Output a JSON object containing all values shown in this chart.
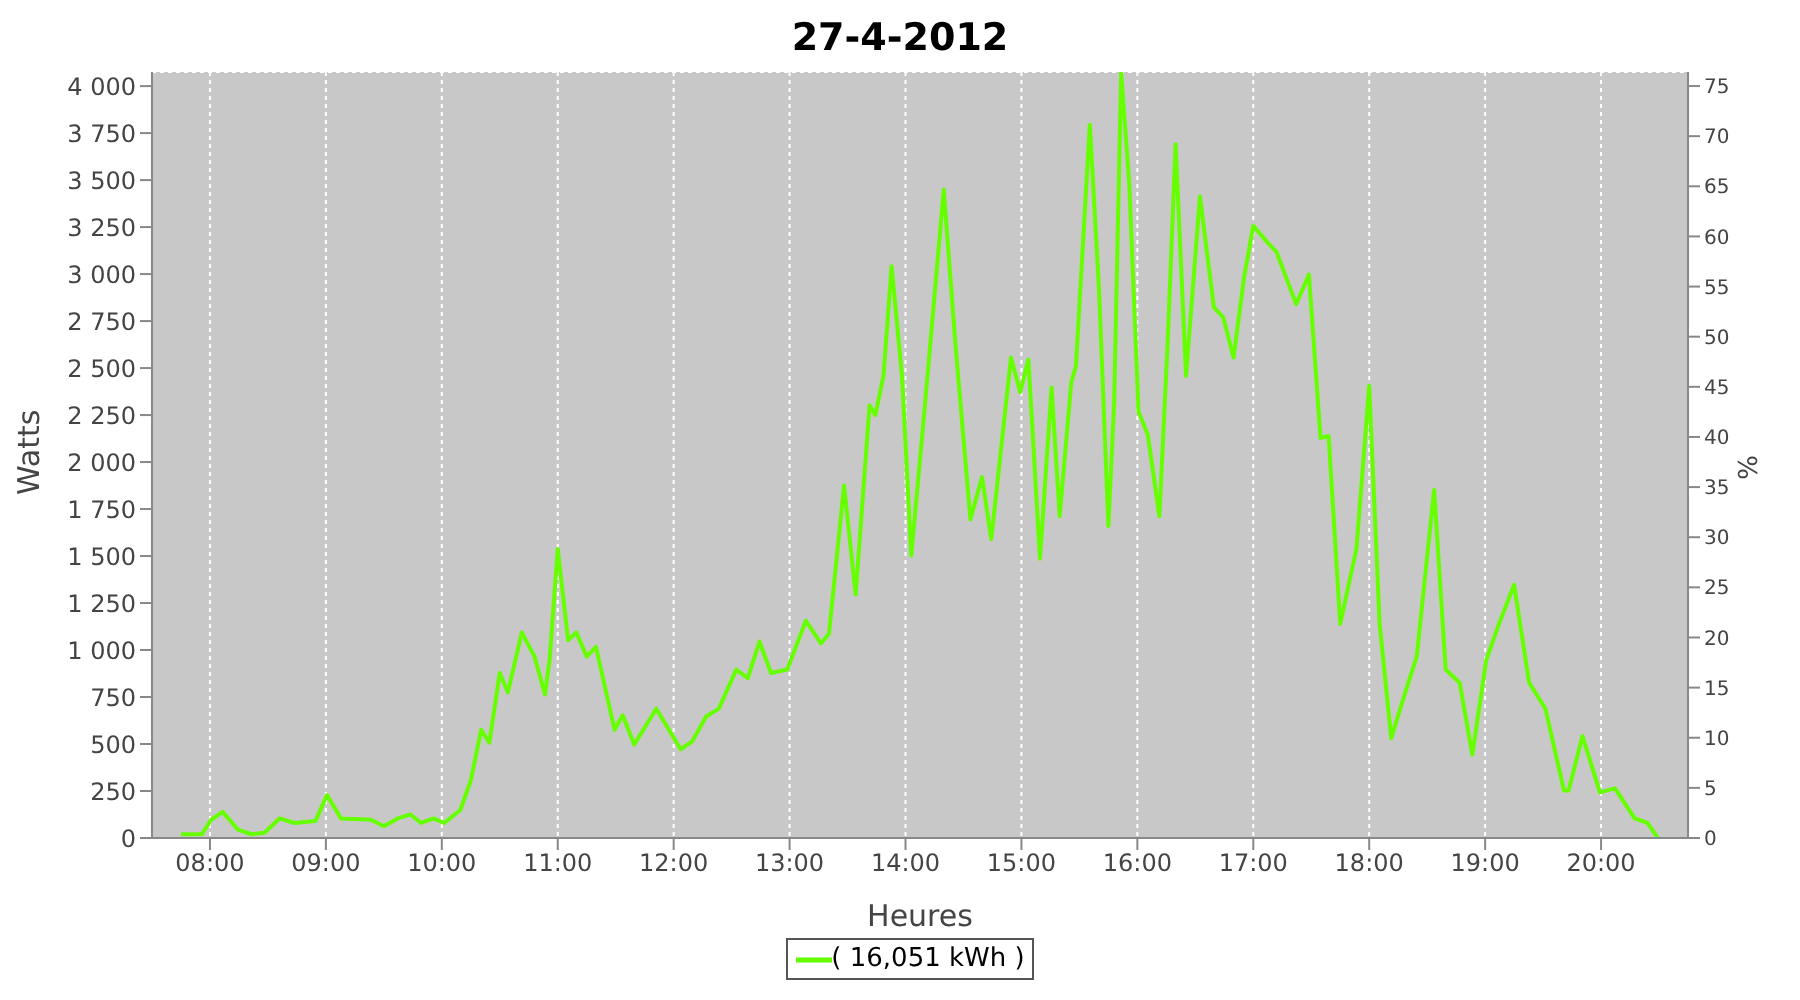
{
  "chart_data": {
    "type": "line",
    "title": "27-4-2012",
    "xlabel": "Heures",
    "ylabel": "Watts",
    "y2label": "%",
    "x": [
      7.75,
      7.93,
      8.01,
      8.11,
      8.24,
      8.36,
      8.47,
      8.6,
      8.73,
      8.91,
      9.01,
      9.13,
      9.39,
      9.5,
      9.62,
      9.73,
      9.82,
      9.93,
      10.02,
      10.16,
      10.25,
      10.34,
      10.41,
      10.5,
      10.57,
      10.69,
      10.8,
      10.89,
      10.93,
      11.0,
      11.09,
      11.16,
      11.25,
      11.33,
      11.49,
      11.56,
      11.66,
      11.85,
      12.06,
      12.16,
      12.28,
      12.39,
      12.54,
      12.64,
      12.74,
      12.84,
      12.98,
      13.14,
      13.27,
      13.34,
      13.47,
      13.57,
      13.69,
      13.74,
      13.81,
      13.88,
      13.97,
      14.05,
      14.17,
      14.33,
      14.43,
      14.56,
      14.66,
      14.74,
      14.91,
      14.99,
      15.06,
      15.16,
      15.26,
      15.33,
      15.43,
      15.47,
      15.59,
      15.67,
      15.75,
      15.8,
      15.86,
      15.93,
      16.01,
      16.09,
      16.19,
      16.26,
      16.33,
      16.42,
      16.54,
      16.66,
      16.74,
      16.83,
      16.92,
      17.0,
      17.12,
      17.2,
      17.37,
      17.48,
      17.58,
      17.65,
      17.75,
      17.89,
      18.0,
      18.09,
      18.19,
      18.32,
      18.41,
      18.56,
      18.66,
      18.78,
      18.89,
      19.01,
      19.12,
      19.25,
      19.38,
      19.52,
      19.68,
      19.72,
      19.84,
      19.99,
      20.12,
      20.29,
      20.4,
      20.49
    ],
    "series": [
      {
        "name": "( 16,051 kWh )",
        "color": "#66ff00",
        "values": [
          20,
          20,
          97,
          139,
          45,
          20,
          28,
          104,
          80,
          90,
          229,
          104,
          97,
          62,
          104,
          125,
          80,
          104,
          80,
          149,
          306,
          576,
          507,
          878,
          774,
          1094,
          965,
          764,
          948,
          1538,
          1052,
          1094,
          965,
          1017,
          576,
          653,
          497,
          688,
          472,
          514,
          646,
          688,
          896,
          851,
          1045,
          878,
          896,
          1156,
          1035,
          1087,
          1875,
          1295,
          2302,
          2250,
          2458,
          3042,
          2458,
          1503,
          2319,
          3448,
          2632,
          1694,
          1920,
          1590,
          2556,
          2372,
          2545,
          1486,
          2396,
          1712,
          2424,
          2510,
          3795,
          2910,
          1660,
          2319,
          4070,
          3483,
          2267,
          2146,
          1712,
          2615,
          3691,
          2458,
          3413,
          2823,
          2771,
          2556,
          2979,
          3257,
          3170,
          3118,
          2840,
          2997,
          2128,
          2139,
          1139,
          1538,
          2406,
          1139,
          531,
          792,
          965,
          1851,
          896,
          826,
          444,
          948,
          1139,
          1347,
          826,
          688,
          253,
          253,
          542,
          243,
          264,
          104,
          80,
          0
        ]
      }
    ],
    "xlim": [
      7.5,
      20.75
    ],
    "xticks": [
      {
        "value": 8,
        "label": "08:00"
      },
      {
        "value": 9,
        "label": "09:00"
      },
      {
        "value": 10,
        "label": "10:00"
      },
      {
        "value": 11,
        "label": "11:00"
      },
      {
        "value": 12,
        "label": "12:00"
      },
      {
        "value": 13,
        "label": "13:00"
      },
      {
        "value": 14,
        "label": "14:00"
      },
      {
        "value": 15,
        "label": "15:00"
      },
      {
        "value": 16,
        "label": "16:00"
      },
      {
        "value": 17,
        "label": "17:00"
      },
      {
        "value": 18,
        "label": "18:00"
      },
      {
        "value": 19,
        "label": "19:00"
      },
      {
        "value": 20,
        "label": "20:00"
      }
    ],
    "ylim": [
      0,
      4075
    ],
    "yticks": [
      0,
      250,
      500,
      750,
      {
        "value": 1000,
        "label": "1 000"
      },
      {
        "value": 1250,
        "label": "1 250"
      },
      {
        "value": 1500,
        "label": "1 500"
      },
      {
        "value": 1750,
        "label": "1 750"
      },
      {
        "value": 2000,
        "label": "2 000"
      },
      {
        "value": 2250,
        "label": "2 250"
      },
      {
        "value": 2500,
        "label": "2 500"
      },
      {
        "value": 2750,
        "label": "2 750"
      },
      {
        "value": 3000,
        "label": "3 000"
      },
      {
        "value": 3250,
        "label": "3 250"
      },
      {
        "value": 3500,
        "label": "3 500"
      },
      {
        "value": 3750,
        "label": "3 750"
      },
      {
        "value": 4000,
        "label": "4 000"
      }
    ],
    "y2lim": [
      0,
      76.4
    ],
    "y2ticks": [
      0,
      5,
      10,
      15,
      20,
      25,
      30,
      35,
      40,
      45,
      50,
      55,
      60,
      65,
      70,
      75
    ],
    "grid": true,
    "legend": "bottom",
    "marker": "none",
    "line_style": "solid"
  }
}
